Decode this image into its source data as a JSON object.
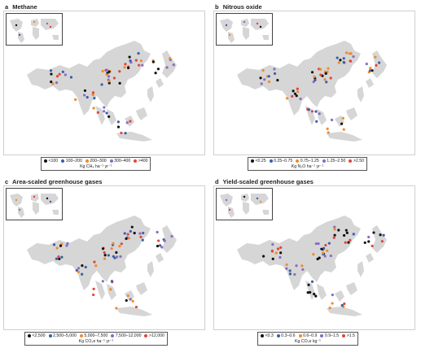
{
  "panels": [
    {
      "letter": "a",
      "title": "Methane",
      "legend_items": [
        "<100",
        "100–200",
        "200–300",
        "300–400",
        ">400"
      ],
      "unit": "Kg CH₄ ha⁻¹ yr⁻¹"
    },
    {
      "letter": "b",
      "title": "Nitrous oxide",
      "legend_items": [
        "<0.25",
        "0.25–0.75",
        "0.75–1.25",
        "1.25–2.50",
        ">2.50"
      ],
      "unit": "Kg N₂O ha⁻¹ yr⁻¹"
    },
    {
      "letter": "c",
      "title": "Area-scaled greenhouse gases",
      "legend_items": [
        "<2,500",
        "2,500–5,000",
        "5,000–7,500",
        "7,500–12,000",
        ">12,000"
      ],
      "unit": "Kg CO₂e ha⁻¹ yr⁻¹"
    },
    {
      "letter": "d",
      "title": "Yield-scaled greenhouse gases",
      "legend_items": [
        "<0.3",
        "0.3–0.6",
        "0.6–0.9",
        "0.9–1.5",
        ">1.5"
      ],
      "unit": "Kg CO₂e kg⁻¹"
    }
  ],
  "legend_colors": [
    "#111111",
    "#3a5fa8",
    "#f08a2c",
    "#8a6bc4",
    "#e0463a"
  ]
}
